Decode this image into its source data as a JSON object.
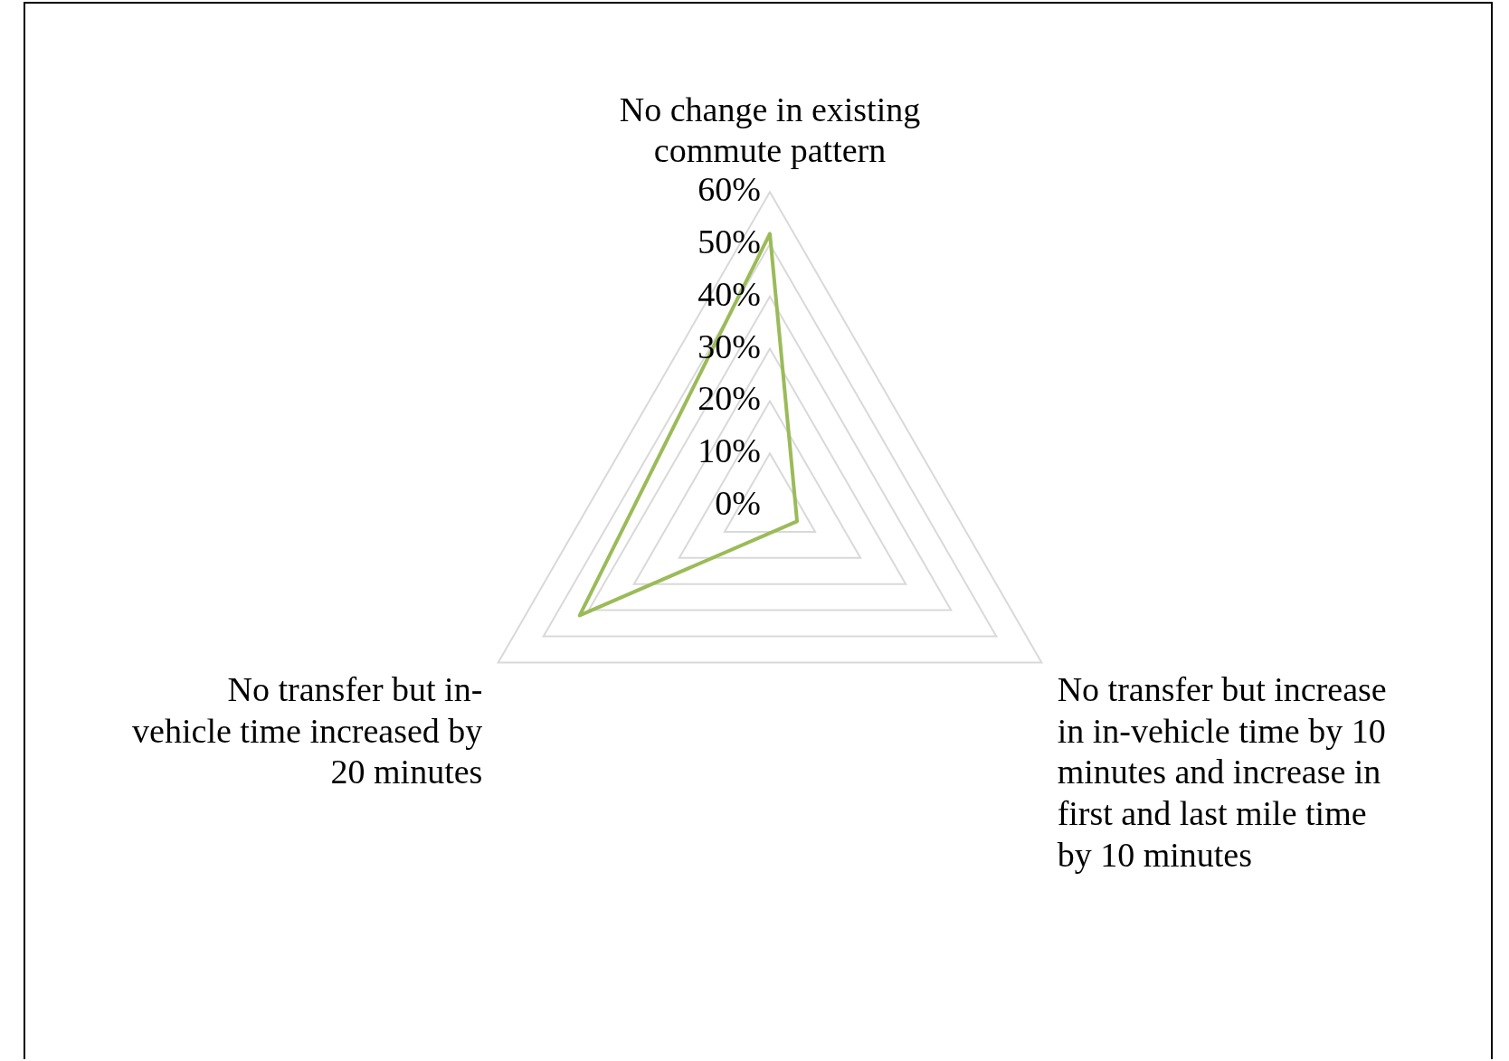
{
  "chart_data": {
    "type": "radar",
    "categories": [
      "No change in existing commute pattern",
      "No transfer but increase in in-vehicle time by 10 minutes and increase in first and last mile time by 10 minutes",
      "No transfer but in-vehicle time increased by 20 minutes"
    ],
    "series": [
      {
        "color": "#9bbb59",
        "values": [
          52,
          6,
          42
        ]
      }
    ],
    "ylim": [
      0,
      60
    ],
    "yticks": [
      {
        "value": 0,
        "label": "0%"
      },
      {
        "value": 10,
        "label": "10%"
      },
      {
        "value": 20,
        "label": "20%"
      },
      {
        "value": 30,
        "label": "30%"
      },
      {
        "value": 40,
        "label": "40%"
      },
      {
        "value": 50,
        "label": "50%"
      },
      {
        "value": 60,
        "label": "60%"
      }
    ],
    "grid": true,
    "legend": false,
    "marker": "none"
  }
}
